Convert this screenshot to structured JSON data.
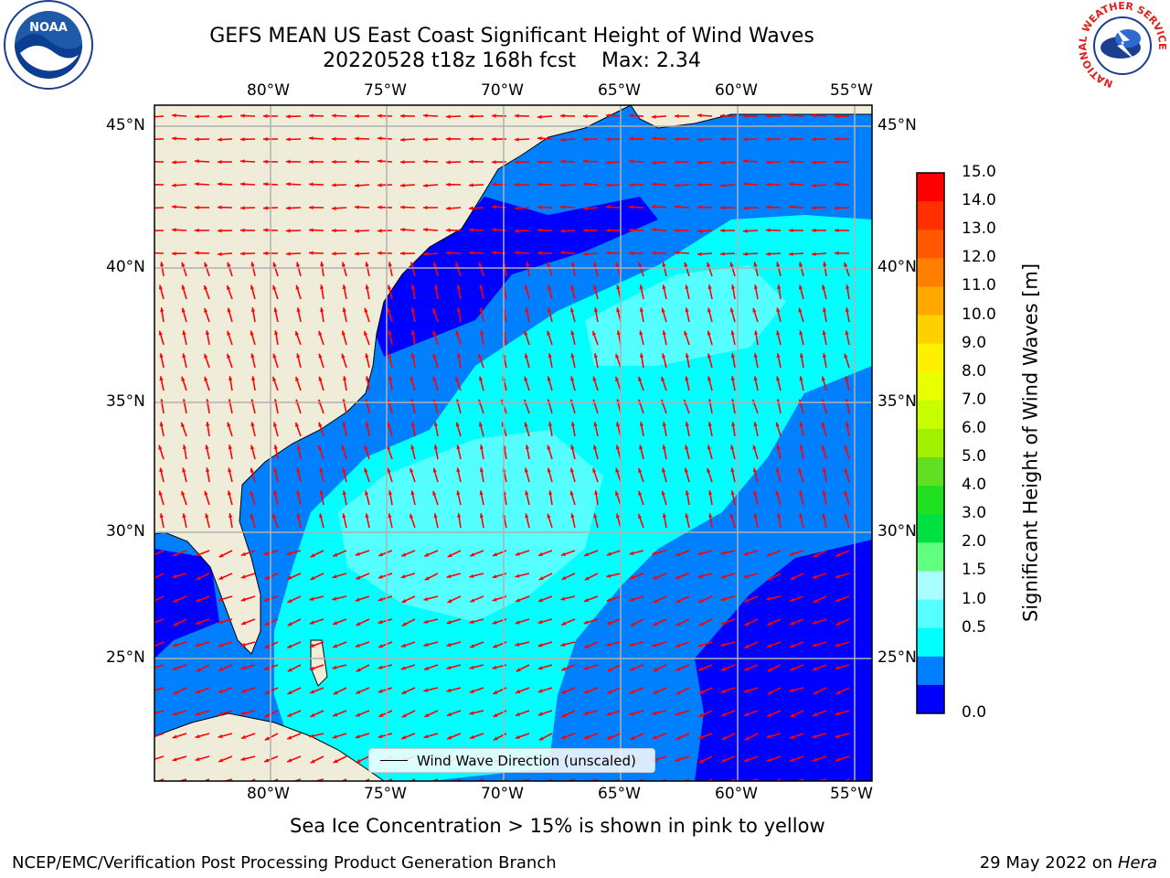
{
  "title": {
    "line1": "GEFS MEAN US East Coast Significant Height of Wind Waves",
    "line2": "20220528 t18z 168h fcst    Max: 2.34"
  },
  "axes": {
    "lon_ticks": [
      "80°W",
      "75°W",
      "70°W",
      "65°W",
      "60°W",
      "55°W"
    ],
    "lat_ticks": [
      "45°N",
      "40°N",
      "35°N",
      "30°N",
      "25°N"
    ],
    "lon_range": [
      -85,
      -54.5
    ],
    "lat_range": [
      20.5,
      46
    ]
  },
  "colorbar": {
    "title": "Significant Height of Wind Waves [m]",
    "ticks": [
      "15.0",
      "14.0",
      "13.0",
      "12.0",
      "11.0",
      "10.0",
      "9.0",
      "8.0",
      "7.0",
      "6.0",
      "5.0",
      "4.0",
      "3.0",
      "2.0",
      "1.5",
      "1.0",
      "0.5",
      "0.0"
    ],
    "colors": [
      "#ff0000",
      "#ff3000",
      "#ff5800",
      "#ff8000",
      "#ffa800",
      "#ffd000",
      "#fff000",
      "#e8ff00",
      "#c8ff00",
      "#a0f000",
      "#60e020",
      "#20e020",
      "#00e040",
      "#60ff80",
      "#aaffff",
      "#55ffff",
      "#00ffff",
      "#0080ff",
      "#0000ff"
    ]
  },
  "map": {
    "land_color": "#efedd9",
    "wave_colors": {
      "level_0_0.5": "#0000ff",
      "level_0.5_1.0": "#0080ff",
      "level_1.0_1.5": "#00ffff",
      "level_1.5_2.0": "#55ffff",
      "level_2.0_3.0": "#aaffff"
    },
    "arrow_color": "#ff0000"
  },
  "legend": {
    "label": "Wind Wave Direction (unscaled)"
  },
  "notes": {
    "sea_ice": "Sea Ice Concentration > 15% is shown in pink to yellow",
    "branch": "NCEP/EMC/Verification Post Processing Product Generation Branch",
    "date_prefix": "29 May 2022 on",
    "machine": "Hera"
  },
  "logos": {
    "noaa": "NOAA",
    "nws_ring": "NATIONAL WEATHER SERVICE"
  }
}
